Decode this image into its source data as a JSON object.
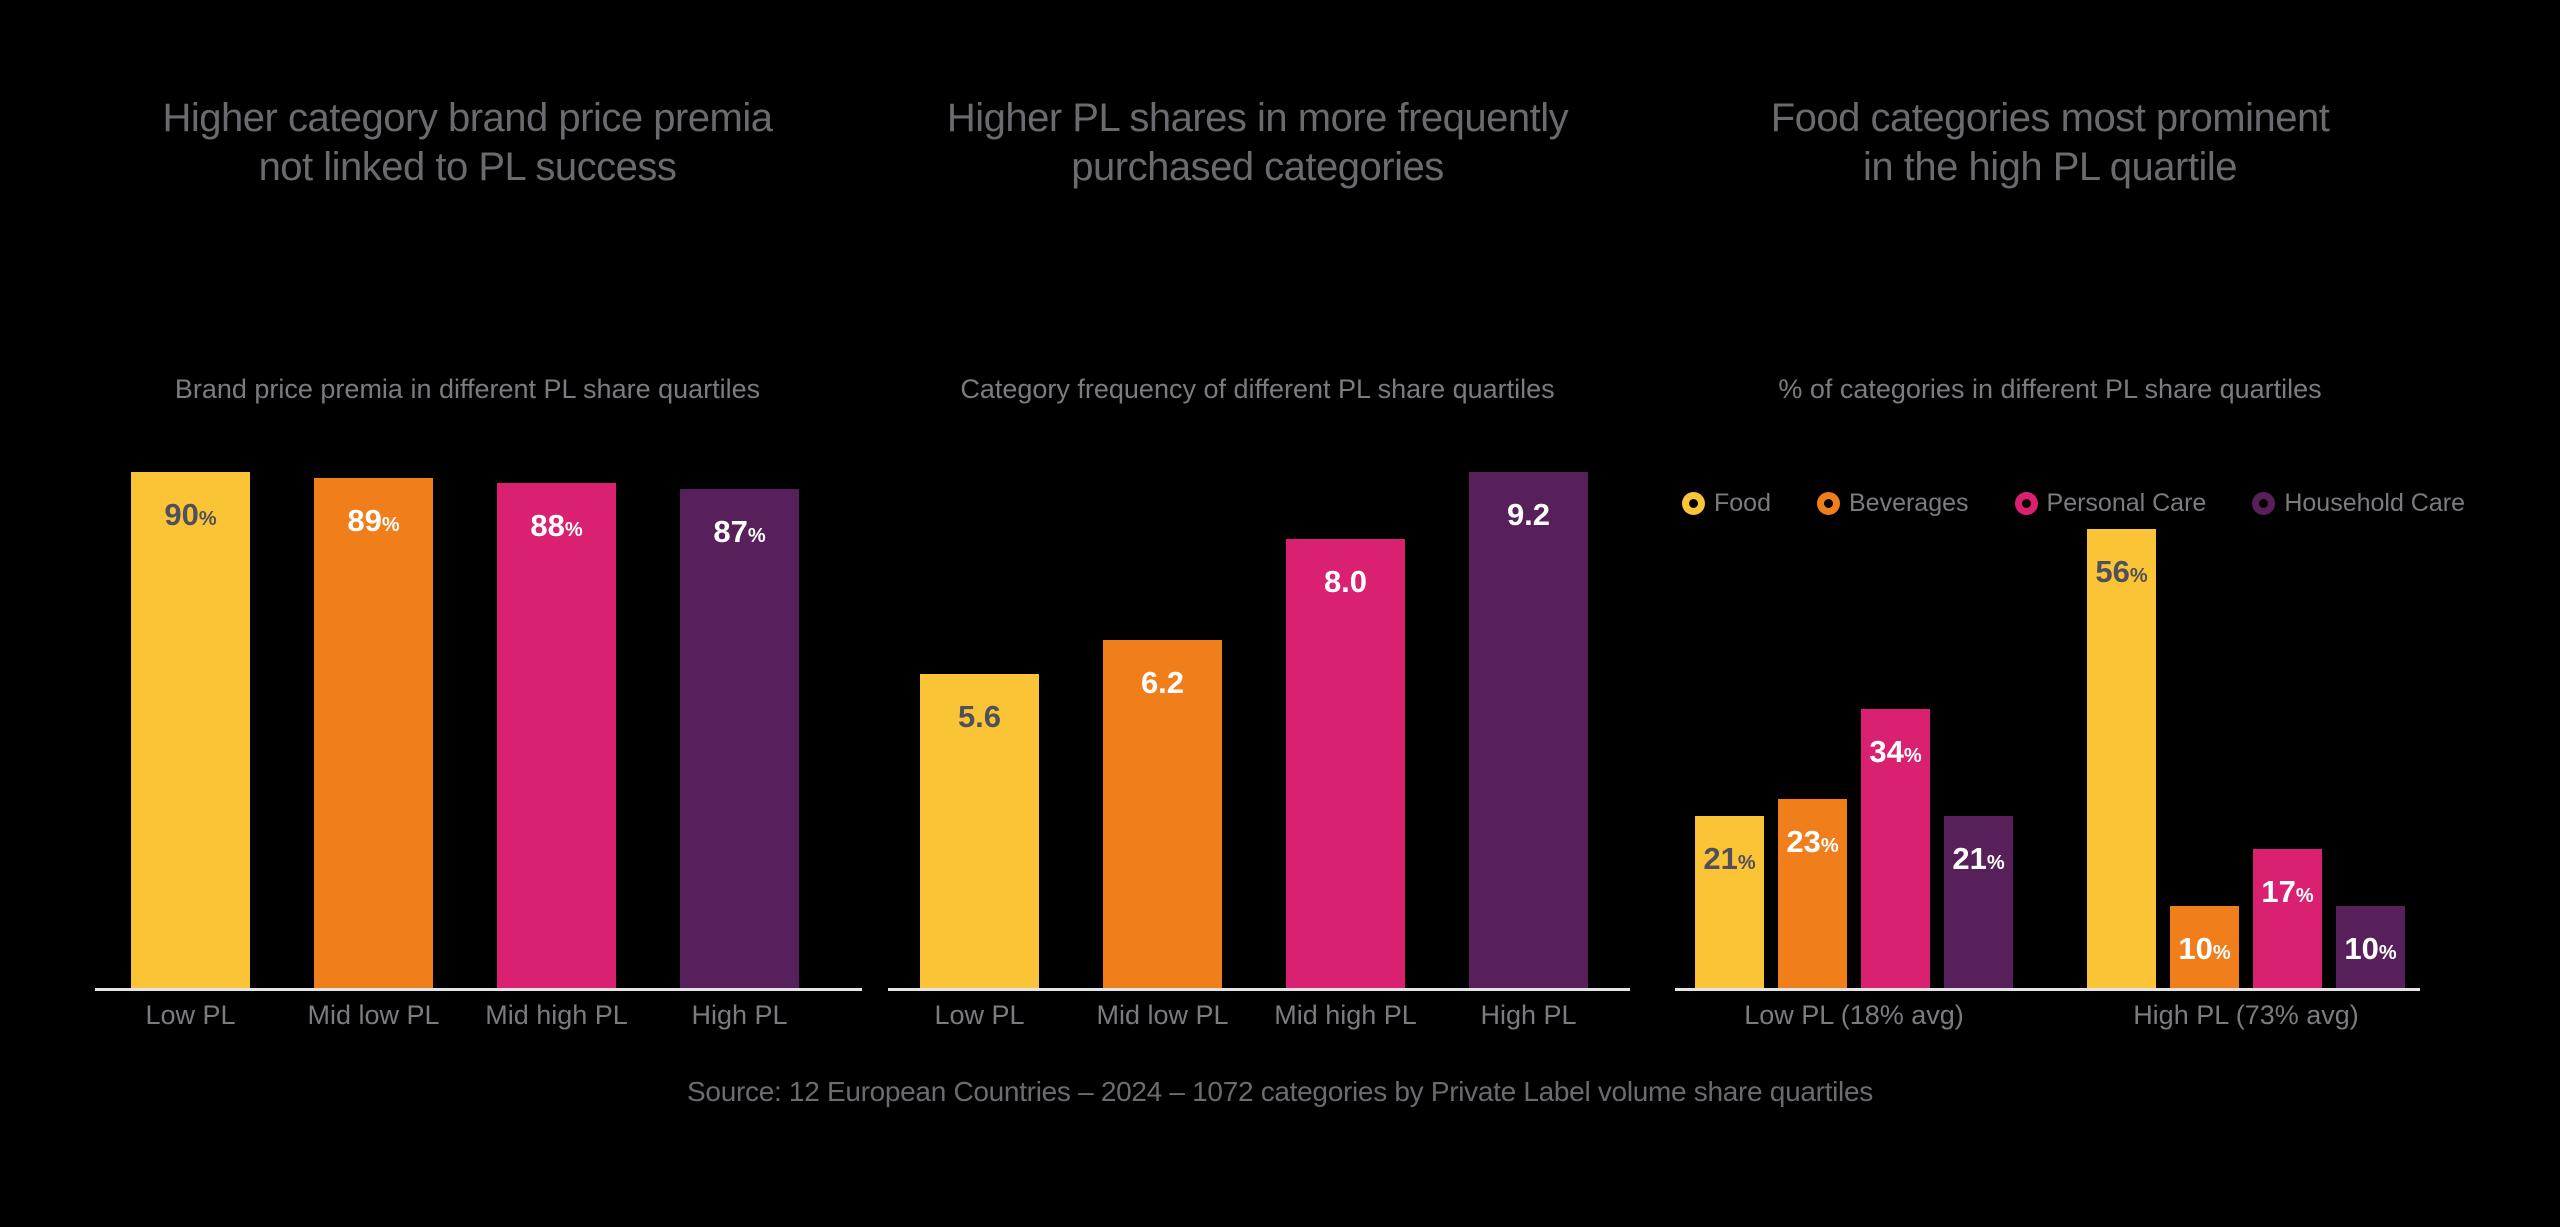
{
  "source_note": "Source: 12 European Countries – 2024 – 1072 categories by Private Label volume share quartiles",
  "palette": {
    "background": "#000000",
    "yellow": "#FBC437",
    "orange": "#F07E1A",
    "pink": "#DA2071",
    "purple": "#58205A",
    "axis_line": "#E4E4E4",
    "title_text": "#6A6A6F",
    "secondary_text": "#7B7B80",
    "label_on_yellow": "#50505A",
    "label_on_dark": "#FFFFFF"
  },
  "chart_data": [
    {
      "type": "bar",
      "title": "Higher category brand price premia not linked to PL success",
      "title_lines": [
        "Higher category brand price premia",
        "not linked to PL success"
      ],
      "subtitle": "Brand price premia in different PL share quartiles",
      "categories": [
        "Low PL",
        "Mid low PL",
        "Mid high PL",
        "High PL"
      ],
      "values": [
        90,
        89,
        88,
        87
      ],
      "value_labels": [
        "90",
        "89",
        "88",
        "87"
      ],
      "value_suffix": "%",
      "bar_colors": [
        "#FBC437",
        "#F07E1A",
        "#DA2071",
        "#58205A"
      ],
      "ylabel": "",
      "xlabel": "",
      "ylim": [
        0,
        100
      ],
      "grid": false,
      "legend_position": "none"
    },
    {
      "type": "bar",
      "title": "Higher PL shares in more frequently purchased categories",
      "title_lines": [
        "Higher PL shares in more frequently",
        "purchased categories"
      ],
      "subtitle": "Category frequency of different PL share quartiles",
      "categories": [
        "Low PL",
        "Mid low PL",
        "Mid high PL",
        "High PL"
      ],
      "values": [
        5.6,
        6.2,
        8.0,
        9.2
      ],
      "value_labels": [
        "5.6",
        "6.2",
        "8.0",
        "9.2"
      ],
      "value_suffix": "",
      "bar_colors": [
        "#FBC437",
        "#F07E1A",
        "#DA2071",
        "#58205A"
      ],
      "ylabel": "",
      "xlabel": "",
      "ylim": [
        0,
        10.2
      ],
      "grid": false,
      "legend_position": "none"
    },
    {
      "type": "grouped-bar",
      "title": "Food categories most prominent in the high PL quartile",
      "title_lines": [
        "Food categories most prominent",
        "in the high PL quartile"
      ],
      "subtitle": "% of categories in different PL share quartiles",
      "categories": [
        "Low PL (18% avg)",
        "High PL (73% avg)"
      ],
      "series": [
        {
          "name": "Food",
          "color": "#FBC437",
          "values": [
            21,
            56
          ],
          "value_labels": [
            "21",
            "56"
          ]
        },
        {
          "name": "Beverages",
          "color": "#F07E1A",
          "values": [
            23,
            10
          ],
          "value_labels": [
            "23",
            "10"
          ]
        },
        {
          "name": "Personal Care",
          "color": "#DA2071",
          "values": [
            34,
            17
          ],
          "value_labels": [
            "34",
            "17"
          ]
        },
        {
          "name": "Household Care",
          "color": "#58205A",
          "values": [
            21,
            10
          ],
          "value_labels": [
            "21",
            "10"
          ]
        }
      ],
      "value_suffix": "%",
      "ylabel": "",
      "xlabel": "",
      "ylim": [
        0,
        63
      ],
      "grid": false,
      "legend_position": "top"
    }
  ]
}
